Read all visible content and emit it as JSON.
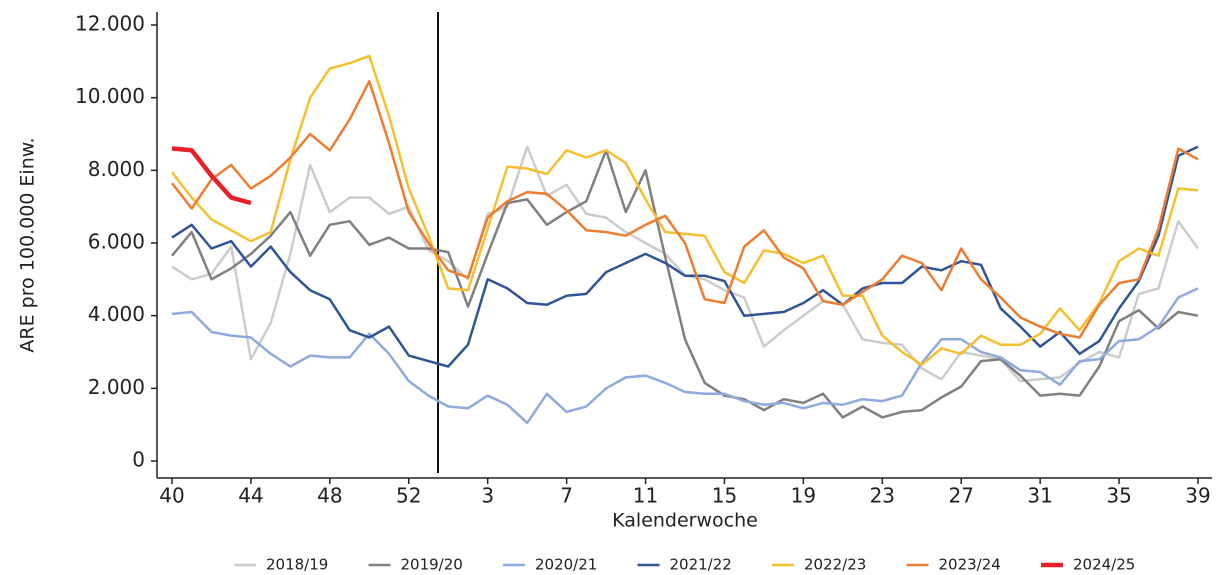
{
  "chart_data": {
    "type": "line",
    "y_label": "ARE pro 100.000 Einw.",
    "x_label": "Kalenderwoche",
    "categories": [
      "40",
      null,
      null,
      null,
      "44",
      null,
      null,
      null,
      "48",
      null,
      null,
      null,
      "52",
      null,
      null,
      null,
      "3",
      null,
      null,
      null,
      "7",
      null,
      null,
      null,
      "11",
      null,
      null,
      null,
      "15",
      null,
      null,
      null,
      "19",
      null,
      null,
      null,
      "23",
      null,
      null,
      null,
      "27",
      null,
      null,
      null,
      "31",
      null,
      null,
      null,
      "35",
      null,
      null,
      null,
      "39"
    ],
    "ylim": [
      0,
      12000
    ],
    "yticks": [
      0,
      {
        "value": 2000,
        "label": "2.000"
      },
      {
        "value": 4000,
        "label": "4.000"
      },
      {
        "value": 6000,
        "label": "6.000"
      },
      {
        "value": 8000,
        "label": "8.000"
      },
      {
        "value": 10000,
        "label": "10.000"
      },
      {
        "value": 12000,
        "label": "12.000"
      }
    ],
    "series": [
      {
        "name": "2018/19",
        "color": "#cccccc",
        "values": [
          5350,
          5000,
          5150,
          5900,
          2800,
          3800,
          5700,
          8150,
          6850,
          7250,
          7250,
          6800,
          7000,
          5800,
          5500,
          5000,
          6800,
          7000,
          8650,
          7300,
          7600,
          6800,
          6700,
          6300,
          6000,
          5700,
          5100,
          5000,
          4700,
          4500,
          3150,
          3600,
          4000,
          4400,
          4300,
          3350,
          3250,
          3200,
          2550,
          2250,
          3000,
          2900,
          2800,
          2200,
          2250,
          2300,
          2700,
          3000,
          2850,
          4600,
          4750,
          6600,
          5850
        ]
      },
      {
        "name": "2019/20",
        "color": "#808080",
        "values": [
          5650,
          6300,
          5000,
          5300,
          5700,
          6200,
          6850,
          5650,
          6500,
          6600,
          5950,
          6150,
          5850,
          5850,
          5750,
          4250,
          5700,
          7100,
          7200,
          6500,
          6850,
          7150,
          8550,
          6850,
          8000,
          5600,
          3350,
          2150,
          1800,
          1700,
          1400,
          1700,
          1600,
          1850,
          1200,
          1500,
          1200,
          1350,
          1400,
          1750,
          2050,
          2750,
          2800,
          2350,
          1800,
          1850,
          1800,
          2600,
          3850,
          4150,
          3650,
          4100,
          4000
        ]
      },
      {
        "name": "2020/21",
        "color": "#8faadc",
        "values": [
          4050,
          4100,
          3550,
          3450,
          3400,
          2950,
          2600,
          2900,
          2850,
          2850,
          3500,
          2950,
          2200,
          1800,
          1500,
          1450,
          1800,
          1550,
          1050,
          1850,
          1350,
          1500,
          2000,
          2300,
          2350,
          2150,
          1900,
          1850,
          1850,
          1650,
          1550,
          1600,
          1450,
          1600,
          1550,
          1700,
          1650,
          1800,
          2700,
          3350,
          3350,
          3000,
          2850,
          2500,
          2450,
          2100,
          2750,
          2800,
          3300,
          3350,
          3700,
          4500,
          4750
        ]
      },
      {
        "name": "2021/22",
        "color": "#2f5597",
        "values": [
          6150,
          6500,
          5850,
          6050,
          5350,
          5900,
          5200,
          4700,
          4450,
          3600,
          3400,
          3700,
          2900,
          2750,
          2600,
          3200,
          5000,
          4750,
          4350,
          4300,
          4550,
          4600,
          5200,
          5450,
          5700,
          5450,
          5100,
          5100,
          4950,
          4000,
          4050,
          4100,
          4350,
          4700,
          4300,
          4750,
          4900,
          4900,
          5350,
          5250,
          5500,
          5400,
          4200,
          3700,
          3150,
          3550,
          2950,
          3300,
          4200,
          4950,
          6200,
          8400,
          8650
        ]
      },
      {
        "name": "2022/23",
        "color": "#f5c030",
        "values": [
          7950,
          7250,
          6650,
          6350,
          6050,
          6300,
          8300,
          10000,
          10800,
          10950,
          11150,
          9500,
          7500,
          6200,
          4750,
          4700,
          6400,
          8100,
          8050,
          7900,
          8550,
          8350,
          8550,
          8200,
          7200,
          6300,
          6250,
          6200,
          5200,
          4900,
          5800,
          5700,
          5450,
          5650,
          4550,
          4550,
          3450,
          3000,
          2650,
          3100,
          2950,
          3450,
          3200,
          3200,
          3500,
          4200,
          3600,
          4350,
          5500,
          5850,
          5650,
          7500,
          7450
        ]
      },
      {
        "name": "2023/24",
        "color": "#ed7d31",
        "values": [
          7650,
          6950,
          7750,
          8150,
          7500,
          7850,
          8350,
          9000,
          8550,
          9400,
          10450,
          8750,
          6850,
          6000,
          5250,
          5050,
          6700,
          7150,
          7400,
          7350,
          6900,
          6350,
          6300,
          6200,
          6500,
          6750,
          6000,
          4450,
          4350,
          5900,
          6350,
          5600,
          5300,
          4400,
          4300,
          4650,
          5000,
          5650,
          5450,
          4700,
          5850,
          5000,
          4500,
          3950,
          3700,
          3500,
          3400,
          4300,
          4900,
          5000,
          6400,
          8600,
          8300
        ]
      },
      {
        "name": "2024/25",
        "color": "#e8202a",
        "values": [
          8600,
          8550,
          7850,
          7250,
          7100,
          null,
          null,
          null,
          null,
          null,
          null,
          null,
          null,
          null,
          null,
          null,
          null,
          null,
          null,
          null,
          null,
          null,
          null,
          null,
          null,
          null,
          null,
          null,
          null,
          null,
          null,
          null,
          null,
          null,
          null,
          null,
          null,
          null,
          null,
          null,
          null,
          null,
          null,
          null,
          null,
          null,
          null,
          null,
          null,
          null,
          null,
          null,
          null
        ]
      }
    ]
  }
}
